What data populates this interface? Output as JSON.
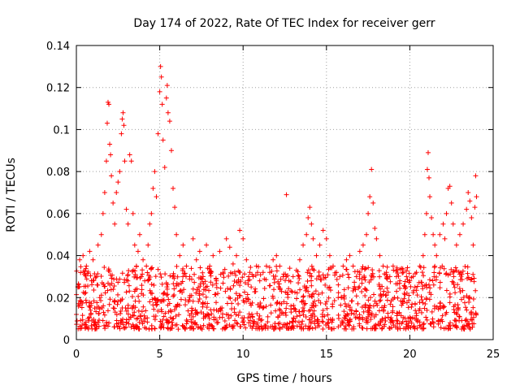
{
  "chart_data": {
    "type": "scatter",
    "title": "Day 174 of 2022, Rate Of TEC Index for receiver gerr",
    "xlabel": "GPS time / hours",
    "ylabel": "ROTI / TECUs",
    "xlim": [
      0,
      25
    ],
    "ylim": [
      0,
      0.14
    ],
    "xticks": [
      0,
      5,
      10,
      15,
      20,
      25
    ],
    "xtick_labels": [
      "0",
      "5",
      "10",
      "15",
      "20",
      "25"
    ],
    "yticks": [
      0,
      0.02,
      0.04,
      0.06,
      0.08,
      0.1,
      0.12,
      0.14
    ],
    "ytick_labels": [
      "0",
      "0.02",
      "0.04",
      "0.06",
      "0.08",
      "0.1",
      "0.12",
      "0.14"
    ],
    "grid": true,
    "marker": "plus",
    "color": "#ff0000",
    "series": [
      {
        "name": "ROTI",
        "points": [
          [
            0.0,
            0.012
          ],
          [
            0.1,
            0.025
          ],
          [
            0.2,
            0.038
          ],
          [
            0.3,
            0.018
          ],
          [
            0.4,
            0.04
          ],
          [
            0.5,
            0.022
          ],
          [
            0.6,
            0.035
          ],
          [
            0.7,
            0.01
          ],
          [
            0.8,
            0.042
          ],
          [
            0.9,
            0.028
          ],
          [
            1.0,
            0.038
          ],
          [
            1.1,
            0.015
          ],
          [
            1.2,
            0.03
          ],
          [
            1.3,
            0.045
          ],
          [
            1.4,
            0.02
          ],
          [
            1.5,
            0.05
          ],
          [
            1.6,
            0.06
          ],
          [
            1.7,
            0.07
          ],
          [
            1.8,
            0.085
          ],
          [
            1.85,
            0.103
          ],
          [
            1.9,
            0.113
          ],
          [
            1.95,
            0.112
          ],
          [
            2.0,
            0.093
          ],
          [
            2.05,
            0.088
          ],
          [
            2.1,
            0.078
          ],
          [
            2.2,
            0.065
          ],
          [
            2.3,
            0.055
          ],
          [
            2.4,
            0.07
          ],
          [
            2.5,
            0.075
          ],
          [
            2.6,
            0.08
          ],
          [
            2.7,
            0.098
          ],
          [
            2.75,
            0.105
          ],
          [
            2.8,
            0.108
          ],
          [
            2.85,
            0.102
          ],
          [
            2.9,
            0.085
          ],
          [
            3.0,
            0.062
          ],
          [
            3.1,
            0.055
          ],
          [
            3.2,
            0.088
          ],
          [
            3.3,
            0.085
          ],
          [
            3.4,
            0.06
          ],
          [
            3.5,
            0.045
          ],
          [
            3.6,
            0.035
          ],
          [
            3.7,
            0.042
          ],
          [
            3.8,
            0.05
          ],
          [
            3.9,
            0.03
          ],
          [
            4.0,
            0.038
          ],
          [
            4.1,
            0.028
          ],
          [
            4.2,
            0.035
          ],
          [
            4.3,
            0.045
          ],
          [
            4.4,
            0.055
          ],
          [
            4.5,
            0.06
          ],
          [
            4.6,
            0.072
          ],
          [
            4.7,
            0.08
          ],
          [
            4.8,
            0.068
          ],
          [
            4.9,
            0.098
          ],
          [
            5.0,
            0.118
          ],
          [
            5.05,
            0.13
          ],
          [
            5.1,
            0.125
          ],
          [
            5.15,
            0.112
          ],
          [
            5.2,
            0.095
          ],
          [
            5.3,
            0.082
          ],
          [
            5.4,
            0.115
          ],
          [
            5.45,
            0.121
          ],
          [
            5.5,
            0.108
          ],
          [
            5.6,
            0.104
          ],
          [
            5.7,
            0.09
          ],
          [
            5.8,
            0.072
          ],
          [
            5.9,
            0.063
          ],
          [
            6.0,
            0.05
          ],
          [
            6.2,
            0.04
          ],
          [
            6.4,
            0.045
          ],
          [
            6.6,
            0.035
          ],
          [
            6.8,
            0.03
          ],
          [
            7.0,
            0.048
          ],
          [
            7.2,
            0.038
          ],
          [
            7.4,
            0.042
          ],
          [
            7.6,
            0.03
          ],
          [
            7.8,
            0.045
          ],
          [
            8.0,
            0.035
          ],
          [
            8.2,
            0.04
          ],
          [
            8.4,
            0.028
          ],
          [
            8.6,
            0.042
          ],
          [
            8.8,
            0.032
          ],
          [
            9.0,
            0.048
          ],
          [
            9.2,
            0.044
          ],
          [
            9.4,
            0.036
          ],
          [
            9.6,
            0.04
          ],
          [
            9.8,
            0.052
          ],
          [
            10.0,
            0.048
          ],
          [
            10.2,
            0.038
          ],
          [
            10.4,
            0.032
          ],
          [
            10.6,
            0.03
          ],
          [
            10.8,
            0.035
          ],
          [
            11.0,
            0.028
          ],
          [
            11.2,
            0.032
          ],
          [
            11.4,
            0.035
          ],
          [
            11.6,
            0.032
          ],
          [
            11.8,
            0.038
          ],
          [
            12.0,
            0.04
          ],
          [
            12.2,
            0.035
          ],
          [
            12.4,
            0.03
          ],
          [
            12.6,
            0.069
          ],
          [
            12.8,
            0.034
          ],
          [
            13.0,
            0.03
          ],
          [
            13.2,
            0.033
          ],
          [
            13.4,
            0.038
          ],
          [
            13.6,
            0.045
          ],
          [
            13.8,
            0.05
          ],
          [
            13.9,
            0.058
          ],
          [
            14.0,
            0.063
          ],
          [
            14.1,
            0.055
          ],
          [
            14.2,
            0.048
          ],
          [
            14.4,
            0.04
          ],
          [
            14.6,
            0.045
          ],
          [
            14.8,
            0.052
          ],
          [
            15.0,
            0.048
          ],
          [
            15.2,
            0.04
          ],
          [
            15.4,
            0.035
          ],
          [
            15.6,
            0.032
          ],
          [
            15.8,
            0.03
          ],
          [
            16.0,
            0.035
          ],
          [
            16.2,
            0.038
          ],
          [
            16.4,
            0.04
          ],
          [
            16.6,
            0.035
          ],
          [
            16.8,
            0.03
          ],
          [
            17.0,
            0.042
          ],
          [
            17.2,
            0.045
          ],
          [
            17.4,
            0.05
          ],
          [
            17.5,
            0.06
          ],
          [
            17.6,
            0.068
          ],
          [
            17.7,
            0.081
          ],
          [
            17.8,
            0.065
          ],
          [
            17.9,
            0.053
          ],
          [
            18.0,
            0.048
          ],
          [
            18.2,
            0.04
          ],
          [
            18.4,
            0.035
          ],
          [
            18.6,
            0.032
          ],
          [
            18.8,
            0.03
          ],
          [
            19.0,
            0.035
          ],
          [
            19.2,
            0.03
          ],
          [
            19.4,
            0.028
          ],
          [
            19.6,
            0.032
          ],
          [
            19.8,
            0.03
          ],
          [
            20.0,
            0.028
          ],
          [
            20.2,
            0.03
          ],
          [
            20.4,
            0.032
          ],
          [
            20.6,
            0.035
          ],
          [
            20.8,
            0.04
          ],
          [
            20.9,
            0.05
          ],
          [
            21.0,
            0.06
          ],
          [
            21.05,
            0.081
          ],
          [
            21.1,
            0.089
          ],
          [
            21.15,
            0.077
          ],
          [
            21.2,
            0.068
          ],
          [
            21.3,
            0.058
          ],
          [
            21.4,
            0.05
          ],
          [
            21.5,
            0.045
          ],
          [
            21.6,
            0.04
          ],
          [
            21.8,
            0.05
          ],
          [
            22.0,
            0.055
          ],
          [
            22.1,
            0.048
          ],
          [
            22.2,
            0.06
          ],
          [
            22.3,
            0.072
          ],
          [
            22.4,
            0.073
          ],
          [
            22.5,
            0.065
          ],
          [
            22.6,
            0.055
          ],
          [
            22.8,
            0.045
          ],
          [
            23.0,
            0.05
          ],
          [
            23.2,
            0.055
          ],
          [
            23.4,
            0.062
          ],
          [
            23.5,
            0.07
          ],
          [
            23.6,
            0.066
          ],
          [
            23.7,
            0.058
          ],
          [
            23.8,
            0.045
          ],
          [
            23.9,
            0.063
          ],
          [
            23.95,
            0.078
          ],
          [
            24.0,
            0.068
          ]
        ],
        "baseline_band": [
          0.005,
          0.035
        ]
      }
    ]
  }
}
